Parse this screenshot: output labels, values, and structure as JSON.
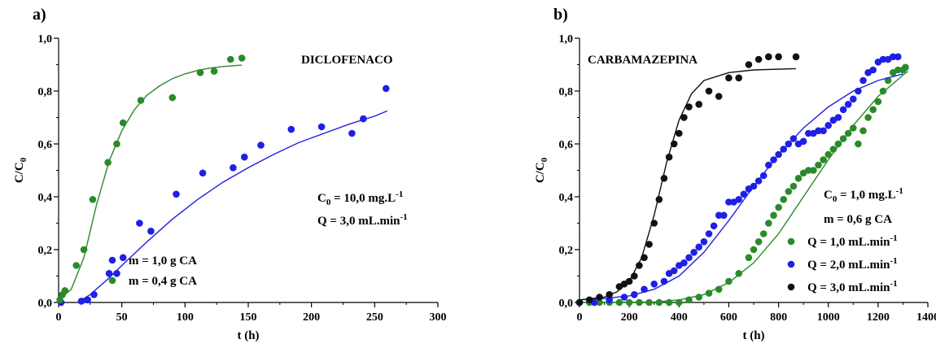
{
  "chart_data": [
    {
      "type": "scatter",
      "panel_label": "a)",
      "annotation": "DICLOFENACO",
      "conditions": [
        {
          "base": "C",
          "sub": "0",
          "rest": " = 10,0 mg.L",
          "sup": "-1"
        },
        {
          "base": "Q = 3,0 mL.min",
          "sub": "",
          "rest": "",
          "sup": "-1"
        }
      ],
      "xlabel": "t (h)",
      "ylabel": {
        "base": "C/C",
        "sub": "0"
      },
      "xlim": [
        0,
        300
      ],
      "ylim": [
        0,
        1.0
      ],
      "xticks": [
        "0",
        "50",
        "100",
        "150",
        "200",
        "250",
        "300"
      ],
      "yticks": [
        "0,0",
        "0,2",
        "0,4",
        "0,6",
        "0,8",
        "1,0"
      ],
      "grid": false,
      "legend_position": "lower-right",
      "series": [
        {
          "name": "m = 1,0 g CA",
          "color": "#1f1fe6",
          "points": [
            [
              2,
              0.0
            ],
            [
              18,
              0.005
            ],
            [
              23,
              0.01
            ],
            [
              28,
              0.03
            ],
            [
              40,
              0.11
            ],
            [
              46,
              0.11
            ],
            [
              51,
              0.17
            ],
            [
              64,
              0.3
            ],
            [
              73,
              0.27
            ],
            [
              93,
              0.41
            ],
            [
              114,
              0.49
            ],
            [
              138,
              0.51
            ],
            [
              147,
              0.55
            ],
            [
              160,
              0.595
            ],
            [
              184,
              0.655
            ],
            [
              208,
              0.665
            ],
            [
              232,
              0.64
            ],
            [
              241,
              0.695
            ],
            [
              259,
              0.81
            ]
          ],
          "fit": [
            [
              15,
              0
            ],
            [
              25,
              0.03
            ],
            [
              40,
              0.093
            ],
            [
              50,
              0.14
            ],
            [
              70,
              0.23
            ],
            [
              90,
              0.315
            ],
            [
              110,
              0.39
            ],
            [
              130,
              0.455
            ],
            [
              150,
              0.51
            ],
            [
              170,
              0.56
            ],
            [
              190,
              0.605
            ],
            [
              210,
              0.64
            ],
            [
              230,
              0.675
            ],
            [
              250,
              0.705
            ],
            [
              260,
              0.725
            ]
          ]
        },
        {
          "name": "m = 0,4 g CA",
          "color": "#2a8a2a",
          "points": [
            [
              1,
              0.01
            ],
            [
              3,
              0.03
            ],
            [
              5,
              0.045
            ],
            [
              14,
              0.14
            ],
            [
              20,
              0.2
            ],
            [
              27,
              0.39
            ],
            [
              39,
              0.53
            ],
            [
              46,
              0.6
            ],
            [
              51,
              0.68
            ],
            [
              65,
              0.765
            ],
            [
              90,
              0.775
            ],
            [
              112,
              0.87
            ],
            [
              123,
              0.875
            ],
            [
              136,
              0.92
            ],
            [
              145,
              0.925
            ]
          ],
          "fit": [
            [
              0,
              0.01
            ],
            [
              10,
              0.05
            ],
            [
              20,
              0.17
            ],
            [
              30,
              0.37
            ],
            [
              40,
              0.535
            ],
            [
              50,
              0.65
            ],
            [
              60,
              0.73
            ],
            [
              70,
              0.785
            ],
            [
              80,
              0.82
            ],
            [
              90,
              0.847
            ],
            [
              100,
              0.865
            ],
            [
              110,
              0.878
            ],
            [
              120,
              0.887
            ],
            [
              130,
              0.893
            ],
            [
              145,
              0.898
            ]
          ]
        }
      ]
    },
    {
      "type": "scatter",
      "panel_label": "b)",
      "annotation": "CARBAMAZEPINA",
      "conditions": [
        {
          "base": "C",
          "sub": "0",
          "rest": " = 1,0 mg.L",
          "sup": "-1"
        },
        {
          "base": "m = 0,6 g CA",
          "sub": "",
          "rest": "",
          "sup": ""
        }
      ],
      "xlabel": "t (h)",
      "ylabel": {
        "base": "C/C",
        "sub": "0"
      },
      "xlim": [
        0,
        1400
      ],
      "ylim": [
        0,
        1.0
      ],
      "xticks": [
        "0",
        "200",
        "400",
        "600",
        "800",
        "1000",
        "1200",
        "1400"
      ],
      "yticks": [
        "0,0",
        "0,2",
        "0,4",
        "0,6",
        "0,8",
        "1,0"
      ],
      "grid": false,
      "legend_position": "lower-right",
      "series": [
        {
          "name": "Q = 1,0 mL.min",
          "name_sup": "-1",
          "color": "#2a8a2a",
          "points": [
            [
              0,
              0
            ],
            [
              40,
              0
            ],
            [
              80,
              0
            ],
            [
              120,
              0
            ],
            [
              160,
              0
            ],
            [
              200,
              0
            ],
            [
              240,
              0
            ],
            [
              280,
              0
            ],
            [
              320,
              0
            ],
            [
              360,
              0
            ],
            [
              400,
              0
            ],
            [
              440,
              0.01
            ],
            [
              480,
              0.02
            ],
            [
              520,
              0.035
            ],
            [
              560,
              0.05
            ],
            [
              600,
              0.08
            ],
            [
              640,
              0.11
            ],
            [
              680,
              0.17
            ],
            [
              700,
              0.2
            ],
            [
              720,
              0.23
            ],
            [
              740,
              0.26
            ],
            [
              760,
              0.3
            ],
            [
              780,
              0.33
            ],
            [
              800,
              0.36
            ],
            [
              820,
              0.39
            ],
            [
              840,
              0.42
            ],
            [
              860,
              0.44
            ],
            [
              880,
              0.47
            ],
            [
              900,
              0.49
            ],
            [
              920,
              0.5
            ],
            [
              940,
              0.5
            ],
            [
              960,
              0.52
            ],
            [
              980,
              0.54
            ],
            [
              1000,
              0.56
            ],
            [
              1020,
              0.58
            ],
            [
              1040,
              0.6
            ],
            [
              1060,
              0.62
            ],
            [
              1080,
              0.64
            ],
            [
              1100,
              0.66
            ],
            [
              1120,
              0.6
            ],
            [
              1140,
              0.65
            ],
            [
              1160,
              0.7
            ],
            [
              1180,
              0.73
            ],
            [
              1200,
              0.76
            ],
            [
              1220,
              0.8
            ],
            [
              1240,
              0.84
            ],
            [
              1260,
              0.87
            ],
            [
              1280,
              0.88
            ],
            [
              1300,
              0.88
            ],
            [
              1310,
              0.89
            ]
          ],
          "fit": [
            [
              0,
              0
            ],
            [
              300,
              0.002
            ],
            [
              400,
              0.01
            ],
            [
              500,
              0.03
            ],
            [
              600,
              0.075
            ],
            [
              700,
              0.15
            ],
            [
              800,
              0.26
            ],
            [
              900,
              0.4
            ],
            [
              1000,
              0.54
            ],
            [
              1100,
              0.67
            ],
            [
              1200,
              0.78
            ],
            [
              1300,
              0.86
            ],
            [
              1320,
              0.875
            ]
          ]
        },
        {
          "name": "Q = 2,0 mL.min",
          "name_sup": "-1",
          "color": "#1f1fe6",
          "points": [
            [
              0,
              0
            ],
            [
              60,
              0
            ],
            [
              120,
              0.01
            ],
            [
              180,
              0.02
            ],
            [
              220,
              0.03
            ],
            [
              260,
              0.05
            ],
            [
              300,
              0.07
            ],
            [
              340,
              0.08
            ],
            [
              360,
              0.11
            ],
            [
              380,
              0.12
            ],
            [
              400,
              0.14
            ],
            [
              420,
              0.15
            ],
            [
              440,
              0.17
            ],
            [
              460,
              0.19
            ],
            [
              480,
              0.21
            ],
            [
              500,
              0.23
            ],
            [
              520,
              0.26
            ],
            [
              540,
              0.29
            ],
            [
              560,
              0.33
            ],
            [
              580,
              0.33
            ],
            [
              600,
              0.38
            ],
            [
              620,
              0.38
            ],
            [
              640,
              0.39
            ],
            [
              660,
              0.41
            ],
            [
              680,
              0.43
            ],
            [
              700,
              0.44
            ],
            [
              720,
              0.46
            ],
            [
              740,
              0.48
            ],
            [
              760,
              0.52
            ],
            [
              780,
              0.54
            ],
            [
              800,
              0.56
            ],
            [
              820,
              0.58
            ],
            [
              840,
              0.6
            ],
            [
              860,
              0.62
            ],
            [
              880,
              0.6
            ],
            [
              900,
              0.61
            ],
            [
              920,
              0.64
            ],
            [
              940,
              0.64
            ],
            [
              960,
              0.65
            ],
            [
              980,
              0.65
            ],
            [
              1000,
              0.67
            ],
            [
              1020,
              0.69
            ],
            [
              1040,
              0.7
            ],
            [
              1060,
              0.73
            ],
            [
              1080,
              0.75
            ],
            [
              1100,
              0.77
            ],
            [
              1120,
              0.8
            ],
            [
              1140,
              0.84
            ],
            [
              1160,
              0.87
            ],
            [
              1180,
              0.88
            ],
            [
              1200,
              0.91
            ],
            [
              1220,
              0.92
            ],
            [
              1240,
              0.92
            ],
            [
              1260,
              0.93
            ],
            [
              1280,
              0.93
            ]
          ],
          "fit": [
            [
              0,
              0.01
            ],
            [
              100,
              0.015
            ],
            [
              200,
              0.025
            ],
            [
              300,
              0.05
            ],
            [
              400,
              0.1
            ],
            [
              500,
              0.19
            ],
            [
              600,
              0.31
            ],
            [
              700,
              0.44
            ],
            [
              800,
              0.56
            ],
            [
              900,
              0.66
            ],
            [
              1000,
              0.74
            ],
            [
              1100,
              0.8
            ],
            [
              1200,
              0.84
            ],
            [
              1300,
              0.865
            ]
          ]
        },
        {
          "name": "Q = 3,0 mL.min",
          "name_sup": "-1",
          "color": "#111111",
          "points": [
            [
              0,
              0
            ],
            [
              40,
              0.01
            ],
            [
              80,
              0.02
            ],
            [
              120,
              0.03
            ],
            [
              160,
              0.06
            ],
            [
              180,
              0.07
            ],
            [
              200,
              0.08
            ],
            [
              220,
              0.1
            ],
            [
              240,
              0.14
            ],
            [
              260,
              0.17
            ],
            [
              280,
              0.22
            ],
            [
              300,
              0.3
            ],
            [
              320,
              0.39
            ],
            [
              340,
              0.47
            ],
            [
              360,
              0.55
            ],
            [
              380,
              0.6
            ],
            [
              400,
              0.64
            ],
            [
              420,
              0.7
            ],
            [
              440,
              0.74
            ],
            [
              480,
              0.75
            ],
            [
              520,
              0.8
            ],
            [
              560,
              0.78
            ],
            [
              600,
              0.85
            ],
            [
              640,
              0.85
            ],
            [
              680,
              0.9
            ],
            [
              720,
              0.92
            ],
            [
              760,
              0.93
            ],
            [
              800,
              0.93
            ],
            [
              870,
              0.93
            ]
          ],
          "fit": [
            [
              0,
              0.01
            ],
            [
              100,
              0.02
            ],
            [
              150,
              0.04
            ],
            [
              200,
              0.08
            ],
            [
              250,
              0.17
            ],
            [
              300,
              0.33
            ],
            [
              350,
              0.53
            ],
            [
              400,
              0.69
            ],
            [
              450,
              0.79
            ],
            [
              500,
              0.84
            ],
            [
              600,
              0.87
            ],
            [
              700,
              0.88
            ],
            [
              870,
              0.885
            ]
          ]
        }
      ]
    }
  ]
}
